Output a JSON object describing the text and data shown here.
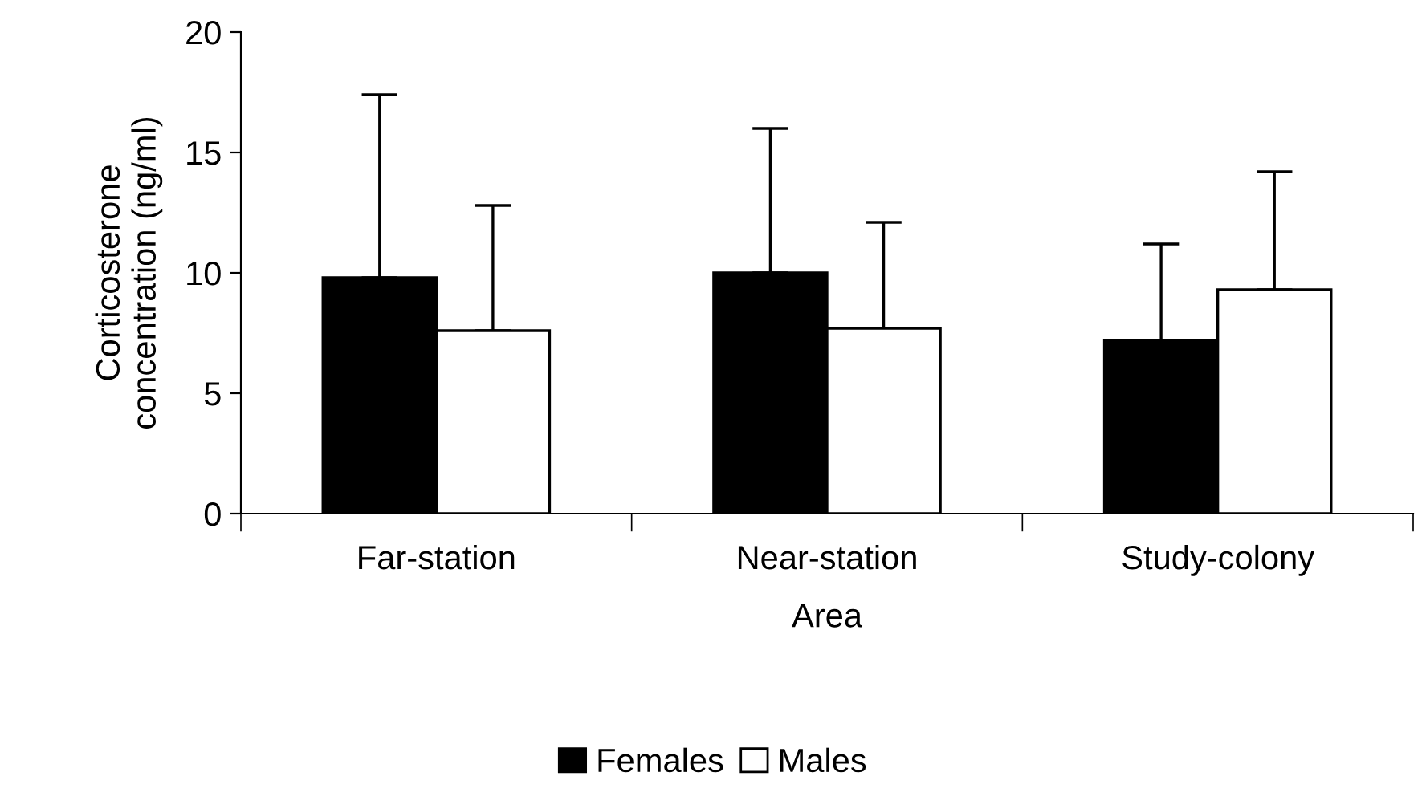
{
  "chart_data": {
    "type": "bar",
    "xlabel": "Area",
    "ylabel": "Corticosterone\nconcentration (ng/ml)",
    "categories": [
      "Far-station",
      "Near-station",
      "Study-colony"
    ],
    "series": [
      {
        "name": "Females",
        "color": "#000000",
        "values": [
          9.8,
          10.0,
          7.2
        ],
        "errors": [
          [
            9.8,
            17.4
          ],
          [
            10.0,
            16.0
          ],
          [
            7.2,
            11.2
          ]
        ]
      },
      {
        "name": "Males",
        "color": "#ffffff",
        "values": [
          7.6,
          7.7,
          9.3
        ],
        "errors": [
          [
            7.6,
            12.8
          ],
          [
            7.7,
            12.1
          ],
          [
            9.3,
            14.2
          ]
        ]
      }
    ],
    "ylim": [
      0,
      20
    ],
    "yticks": [
      0,
      5,
      10,
      15,
      20
    ],
    "grid": false,
    "legend": "bottom"
  }
}
